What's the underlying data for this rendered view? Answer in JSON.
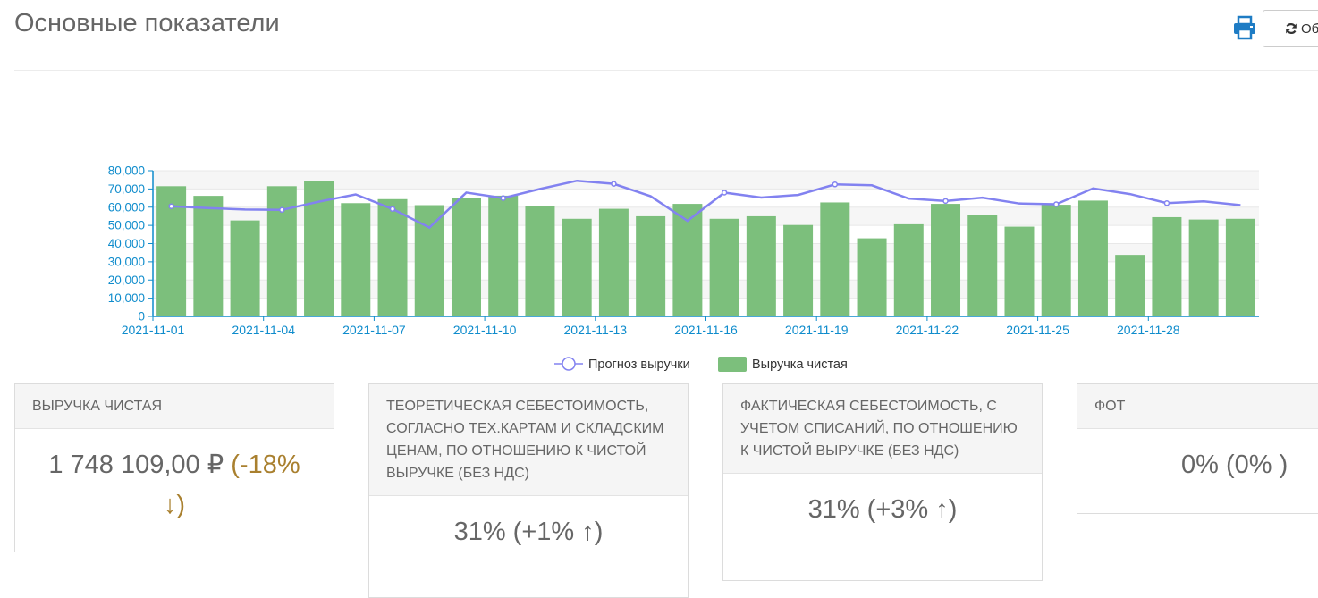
{
  "header": {
    "title": "Основные показатели",
    "print_icon": "printer-icon",
    "refresh_icon": "refresh-icon",
    "refresh_label": "Об"
  },
  "colors": {
    "bar": "#7cbf7c",
    "line": "#8282f0",
    "axis": "#0f8ccc",
    "accent_down": "#a9802f",
    "print_icon": "#1e7cc4"
  },
  "chart_data": {
    "type": "bar",
    "x": [
      "2021-11-01",
      "2021-11-02",
      "2021-11-03",
      "2021-11-04",
      "2021-11-05",
      "2021-11-06",
      "2021-11-07",
      "2021-11-08",
      "2021-11-09",
      "2021-11-10",
      "2021-11-11",
      "2021-11-12",
      "2021-11-13",
      "2021-11-14",
      "2021-11-15",
      "2021-11-16",
      "2021-11-17",
      "2021-11-18",
      "2021-11-19",
      "2021-11-20",
      "2021-11-21",
      "2021-11-22",
      "2021-11-23",
      "2021-11-24",
      "2021-11-25",
      "2021-11-26",
      "2021-11-27",
      "2021-11-28",
      "2021-11-29",
      "2021-11-30"
    ],
    "x_ticks": [
      "2021-11-01",
      "2021-11-04",
      "2021-11-07",
      "2021-11-10",
      "2021-11-13",
      "2021-11-16",
      "2021-11-19",
      "2021-11-22",
      "2021-11-25",
      "2021-11-28"
    ],
    "y_ticks": [
      "80,000",
      "70,000",
      "60,000",
      "50,000",
      "40,000",
      "30,000",
      "20,000",
      "10,000",
      "0"
    ],
    "ylim": [
      0,
      80000
    ],
    "grid": "horizontal bands",
    "legend_position": "bottom-center",
    "series": [
      {
        "name": "Прогноз выручки",
        "type": "line",
        "values": [
          60500,
          59500,
          58700,
          58500,
          63000,
          67000,
          59000,
          48800,
          68000,
          65000,
          70000,
          74500,
          72800,
          66000,
          52500,
          68000,
          65300,
          66700,
          72500,
          72000,
          64700,
          63400,
          65200,
          62000,
          61600,
          70300,
          67200,
          62200,
          63200,
          61100
        ],
        "marker_indices": [
          0,
          3,
          6,
          9,
          12,
          15,
          18,
          21,
          24,
          27
        ]
      },
      {
        "name": "Выручка чистая",
        "type": "bar",
        "values": [
          71500,
          66200,
          52700,
          71500,
          74600,
          62200,
          64400,
          61100,
          65200,
          66300,
          60400,
          53600,
          59100,
          55000,
          61800,
          53600,
          55000,
          50200,
          62600,
          42900,
          50600,
          61800,
          55800,
          49300,
          61300,
          63600,
          33800,
          54500,
          53200,
          53600
        ]
      }
    ]
  },
  "cards": [
    {
      "title": "Выручка чистая",
      "value": "1 748 109,00 ₽ ",
      "delta": "(-18% ↓)"
    },
    {
      "title": "Теоретическая себестоимость, согласно тех.картам и складским ценам, по отношению к чистой выручке (без НДС)",
      "value": "31% (+1% ↑)"
    },
    {
      "title": "Фактическая себестоимость, с учетом списаний, по отношению к чистой выручке (без НДС)",
      "value": "31% (+3% ↑)"
    },
    {
      "title": "ФОТ",
      "value": "0% (0% )"
    }
  ]
}
